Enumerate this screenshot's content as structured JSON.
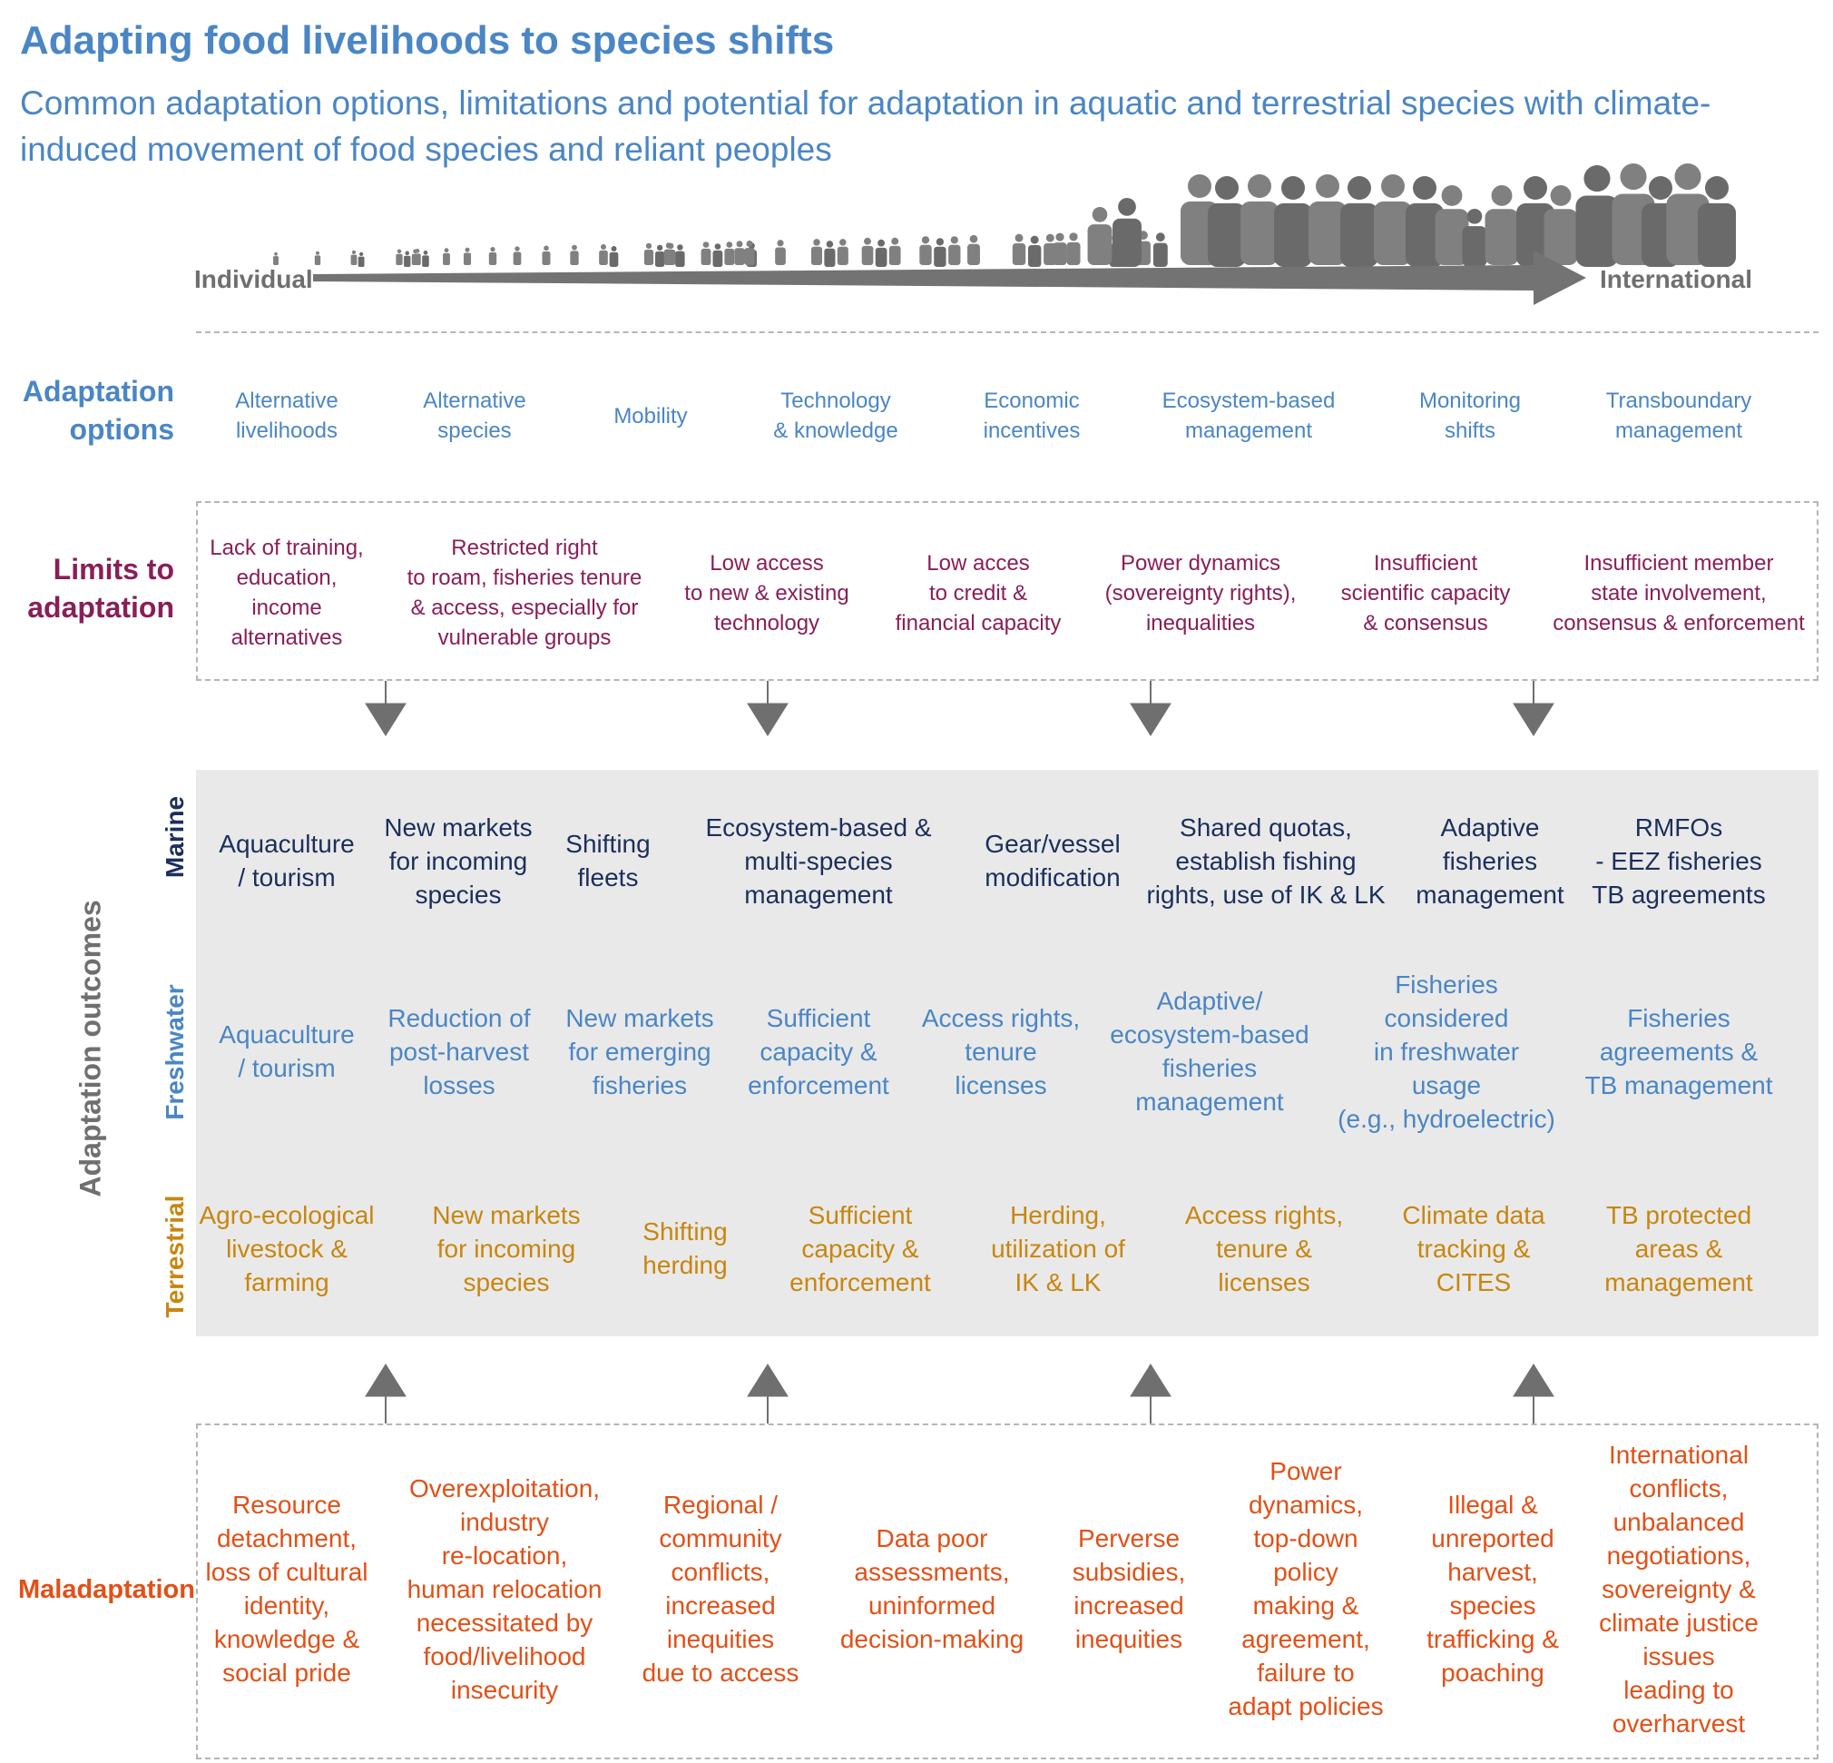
{
  "header": {
    "title": "Adapting food livelihoods to species shifts",
    "subtitle": "Common adaptation options, limitations and potential for adaptation in aquatic and terrestrial species with climate-induced movement of food species and reliant peoples"
  },
  "scale": {
    "left_label": "Individual",
    "right_label": "International",
    "icon": "person-icon",
    "arrow_color": "#6f6f6f"
  },
  "rows": {
    "options_label": "Adaptation\noptions",
    "limits_label": "Limits to\nadaptation",
    "outcomes_label": "Adaptation outcomes",
    "marine_label": "Marine",
    "freshwater_label": "Freshwater",
    "terrestrial_label": "Terrestrial",
    "maladaptation_label": "Maladaptation"
  },
  "options": [
    "Alternative\nlivelihoods",
    "Alternative\nspecies",
    "Mobility",
    "Technology\n& knowledge",
    "Economic\nincentives",
    "Ecosystem-based\nmanagement",
    "Monitoring\nshifts",
    "Transboundary\nmanagement"
  ],
  "limits": [
    "Lack of training,\neducation,\nincome\nalternatives",
    "Restricted right\nto roam, fisheries tenure\n& access, especially for\nvulnerable groups",
    "Low access\nto new & existing\ntechnology",
    "Low acces\nto credit &\nfinancial capacity",
    "Power dynamics\n(sovereignty rights),\ninequalities",
    "Insufficient\nscientific capacity\n& consensus",
    "Insufficient member\nstate involvement,\nconsensus & enforcement"
  ],
  "marine": [
    "Aquaculture\n/ tourism",
    "New markets\nfor incoming\nspecies",
    "Shifting\nfleets",
    "Ecosystem-based &\nmulti-species management",
    "Gear/vessel\nmodification",
    "Shared quotas,\nestablish fishing\nrights, use of IK & LK",
    "Adaptive\nfisheries\nmanagement",
    "RMFOs\n- EEZ fisheries\nTB agreements"
  ],
  "freshwater": [
    "Aquaculture\n/ tourism",
    "Reduction of\npost-harvest\nlosses",
    "New markets\nfor emerging\nfisheries",
    "Sufficient\ncapacity &\nenforcement",
    "Access rights,\ntenure\nlicenses",
    "Adaptive/\necosystem-based\nfisheries\nmanagement",
    "Fisheries\nconsidered\nin freshwater\nusage\n(e.g., hydroelectric)",
    "Fisheries\nagreements &\nTB management"
  ],
  "terrestrial": [
    "Agro-ecological\nlivestock &\nfarming",
    "New markets\nfor incoming\nspecies",
    "Shifting\nherding",
    "Sufficient\ncapacity &\nenforcement",
    "Herding,\nutilization of\nIK & LK",
    "Access rights,\ntenure &\nlicenses",
    "Climate data\ntracking &\nCITES",
    "TB protected\nareas &\nmanagement"
  ],
  "maladaptation": [
    "Resource\ndetachment,\nloss of cultural\nidentity,\nknowledge &\nsocial pride",
    "Overexploitation,\nindustry\nre-location,\nhuman relocation\nnecessitated by\nfood/livelihood\ninsecurity",
    "Regional /\ncommunity\nconflicts,\nincreased\ninequities\ndue to access",
    "Data poor\nassessments,\nuninformed\ndecision-making",
    "Perverse\nsubsidies,\nincreased\ninequities",
    "Power\ndynamics,\ntop-down\npolicy\nmaking &\nagreement,\nfailure to\nadapt policies",
    "Illegal &\nunreported\nharvest,\nspecies\ntrafficking &\npoaching",
    "International\nconflicts,\nunbalanced\nnegotiations,\nsovereignty &\nclimate justice\nissues\nleading to\noverharvest"
  ],
  "colors": {
    "options": "#4a86c5",
    "limits": "#8a1e57",
    "marine": "#1c2f5c",
    "freshwater": "#4a86c5",
    "terrestrial": "#c8860f",
    "maladaptation": "#e25016",
    "panel": "#e9e9e9",
    "arrows": "#6f6f6f"
  }
}
